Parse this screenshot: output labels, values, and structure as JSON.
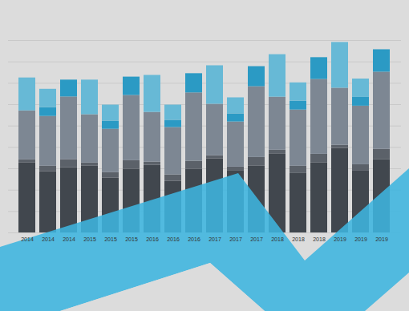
{
  "chart_data": {
    "type": "bar",
    "stacked": true,
    "grid": true,
    "tick_labels": "x",
    "categories": [
      "2014",
      "2014",
      "2014",
      "2015",
      "2015",
      "2015",
      "2016",
      "2016",
      "2016",
      "2017",
      "2017",
      "2017",
      "2018",
      "2018",
      "2018",
      "2019",
      "2019",
      "2019"
    ],
    "ylim": [
      0,
      9
    ],
    "yticks": [
      0,
      1,
      2,
      3,
      4,
      5,
      6,
      7,
      8,
      9
    ],
    "series": [
      {
        "color": "#41474e",
        "values": [
          3.27,
          2.86,
          3.05,
          3.12,
          2.56,
          2.97,
          3.16,
          2.41,
          2.97,
          3.46,
          2.89,
          3.12,
          3.68,
          2.78,
          3.27,
          3.95,
          2.89,
          3.42
        ]
      },
      {
        "color": "#5b6169",
        "values": [
          0.15,
          0.26,
          0.38,
          0.15,
          0.26,
          0.41,
          0.15,
          0.3,
          0.38,
          0.15,
          0.19,
          0.41,
          0.19,
          0.34,
          0.41,
          0.15,
          0.3,
          0.49
        ]
      },
      {
        "color": "#7d8793",
        "values": [
          2.29,
          2.33,
          2.93,
          2.26,
          2.03,
          3.05,
          2.33,
          2.22,
          3.2,
          2.41,
          2.11,
          3.31,
          2.48,
          2.63,
          3.5,
          2.67,
          2.74,
          3.61
        ]
      },
      {
        "color": "#2b9ac4",
        "values": [
          0,
          0.41,
          0.79,
          0,
          0.38,
          0.86,
          0,
          0.34,
          0.9,
          0,
          0.38,
          0.94,
          0,
          0.41,
          1.02,
          0,
          0.41,
          1.05
        ]
      },
      {
        "color": "#67b9d6",
        "values": [
          1.54,
          0.86,
          0,
          1.62,
          0.75,
          0,
          1.73,
          0.71,
          0,
          1.8,
          0.75,
          0,
          1.99,
          0.86,
          0,
          2.14,
          0.86,
          0
        ]
      }
    ]
  }
}
